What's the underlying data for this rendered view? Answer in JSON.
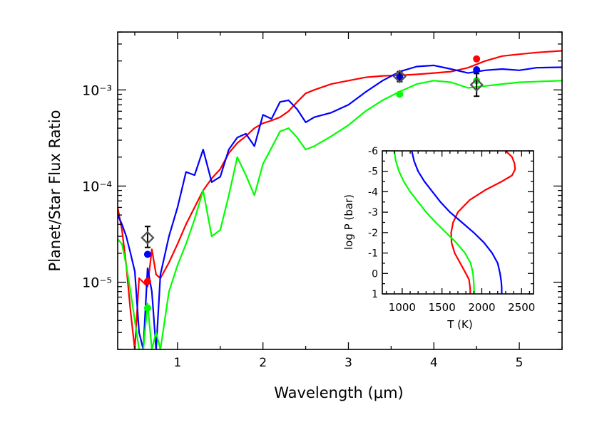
{
  "chart_data": [
    {
      "type": "line",
      "scale": "log-y",
      "ylabel": "Planet/Star Flux Ratio",
      "xlabel": "Wavelength (μm)",
      "xlim": [
        0.3,
        5.5
      ],
      "ylim": [
        2e-06,
        0.004
      ],
      "xticks": [
        1,
        2,
        3,
        4,
        5
      ],
      "yticks": [
        {
          "value": 1e-05,
          "label": "10⁻⁵"
        },
        {
          "value": 0.0001,
          "label": "10⁻⁴"
        },
        {
          "value": 0.001,
          "label": "10⁻³"
        }
      ],
      "series": [
        {
          "name": "red model",
          "color": "#ff0000",
          "x": [
            0.3,
            0.35,
            0.4,
            0.45,
            0.5,
            0.55,
            0.6,
            0.65,
            0.7,
            0.75,
            0.8,
            0.9,
            1.0,
            1.1,
            1.2,
            1.3,
            1.4,
            1.5,
            1.6,
            1.7,
            1.8,
            1.9,
            2.0,
            2.1,
            2.2,
            2.3,
            2.4,
            2.5,
            2.6,
            2.8,
            3.0,
            3.2,
            3.4,
            3.6,
            3.8,
            4.0,
            4.2,
            4.4,
            4.6,
            4.8,
            5.0,
            5.2,
            5.5
          ],
          "y": [
            6e-05,
            3.5e-05,
            1.5e-05,
            5e-06,
            2e-06,
            1.1e-05,
            1e-05,
            9e-06,
            2.2e-05,
            1.2e-05,
            1.1e-05,
            1.6e-05,
            2.5e-05,
            4e-05,
            6e-05,
            9e-05,
            0.00012,
            0.00015,
            0.00022,
            0.00028,
            0.00033,
            0.0004,
            0.00045,
            0.00048,
            0.00052,
            0.0006,
            0.00075,
            0.00092,
            0.001,
            0.00115,
            0.00125,
            0.00135,
            0.0014,
            0.00142,
            0.00145,
            0.0015,
            0.00155,
            0.0017,
            0.002,
            0.00225,
            0.00235,
            0.00245,
            0.00255
          ]
        },
        {
          "name": "blue model",
          "color": "#0000ff",
          "x": [
            0.3,
            0.35,
            0.4,
            0.45,
            0.5,
            0.55,
            0.6,
            0.65,
            0.7,
            0.75,
            0.8,
            0.9,
            1.0,
            1.1,
            1.2,
            1.3,
            1.4,
            1.5,
            1.6,
            1.7,
            1.8,
            1.9,
            2.0,
            2.1,
            2.2,
            2.3,
            2.4,
            2.5,
            2.6,
            2.8,
            3.0,
            3.2,
            3.4,
            3.6,
            3.8,
            4.0,
            4.2,
            4.4,
            4.6,
            4.8,
            5.0,
            5.2,
            5.5
          ],
          "y": [
            5e-05,
            4e-05,
            3e-05,
            2e-05,
            1.3e-05,
            3e-06,
            2e-06,
            1.4e-05,
            8e-06,
            2e-06,
            1.2e-05,
            3e-05,
            6e-05,
            0.00014,
            0.00013,
            0.00024,
            0.00011,
            0.000125,
            0.00024,
            0.00032,
            0.00035,
            0.00026,
            0.00055,
            0.0005,
            0.00075,
            0.00078,
            0.00063,
            0.00046,
            0.00052,
            0.00058,
            0.0007,
            0.00095,
            0.00125,
            0.00155,
            0.00175,
            0.0018,
            0.00165,
            0.0015,
            0.0016,
            0.00165,
            0.0016,
            0.0017,
            0.00172
          ]
        },
        {
          "name": "green model",
          "color": "#00ff00",
          "x": [
            0.3,
            0.35,
            0.4,
            0.45,
            0.5,
            0.55,
            0.6,
            0.65,
            0.7,
            0.75,
            0.8,
            0.9,
            1.0,
            1.1,
            1.2,
            1.3,
            1.4,
            1.5,
            1.6,
            1.7,
            1.8,
            1.9,
            2.0,
            2.1,
            2.2,
            2.3,
            2.4,
            2.5,
            2.6,
            2.8,
            3.0,
            3.2,
            3.4,
            3.6,
            3.8,
            4.0,
            4.2,
            4.4,
            4.6,
            4.8,
            5.0,
            5.2,
            5.5
          ],
          "y": [
            2.8e-05,
            2.5e-05,
            1.5e-05,
            8e-06,
            4e-06,
            2e-06,
            2e-06,
            6e-06,
            2e-06,
            3e-06,
            2e-06,
            8e-06,
            1.5e-05,
            2.5e-05,
            4.5e-05,
            9e-05,
            3e-05,
            3.5e-05,
            8e-05,
            0.0002,
            0.00013,
            8e-05,
            0.00017,
            0.00025,
            0.00037,
            0.0004,
            0.00032,
            0.00024,
            0.00026,
            0.00033,
            0.00043,
            0.0006,
            0.00078,
            0.00096,
            0.00115,
            0.00125,
            0.0012,
            0.00105,
            0.0011,
            0.00115,
            0.0012,
            0.00122,
            0.00125
          ]
        }
      ],
      "model_points": [
        {
          "x": 0.65,
          "y": 1.95e-05,
          "color": "#0000ff"
        },
        {
          "x": 0.65,
          "y": 1.02e-05,
          "color": "#ff0000"
        },
        {
          "x": 0.65,
          "y": 5.4e-06,
          "color": "#00ff00"
        },
        {
          "x": 3.6,
          "y": 0.00142,
          "color": "#ff0000"
        },
        {
          "x": 3.6,
          "y": 0.00135,
          "color": "#0000ff"
        },
        {
          "x": 3.6,
          "y": 0.0009,
          "color": "#00ff00"
        },
        {
          "x": 4.5,
          "y": 0.0021,
          "color": "#ff0000"
        },
        {
          "x": 4.5,
          "y": 0.00162,
          "color": "#0000ff"
        },
        {
          "x": 4.5,
          "y": 0.00125,
          "color": "#00ff00"
        }
      ],
      "observations": [
        {
          "x": 0.65,
          "y": 2.9e-05,
          "ylow": 2.3e-05,
          "yhigh": 3.8e-05
        },
        {
          "x": 3.6,
          "y": 0.00138,
          "ylow": 0.00122,
          "yhigh": 0.00155
        },
        {
          "x": 4.5,
          "y": 0.00113,
          "ylow": 0.00086,
          "yhigh": 0.00148
        }
      ]
    },
    {
      "type": "line",
      "name": "inset temperature-pressure profiles",
      "ylabel": "log P (bar)",
      "xlabel": "T (K)",
      "xlim": [
        750,
        2650
      ],
      "ylim": [
        1,
        -6
      ],
      "xticks": [
        1000,
        1500,
        2000,
        2500
      ],
      "yticks": [
        -6,
        -5,
        -4,
        -3,
        -2,
        -1,
        0,
        1
      ],
      "series": [
        {
          "name": "red profile",
          "color": "#ff0000",
          "T": [
            2300,
            2380,
            2410,
            2420,
            2380,
            2250,
            2050,
            1850,
            1700,
            1640,
            1615,
            1620,
            1660,
            1730,
            1800,
            1840,
            1850,
            1855,
            1855
          ],
          "logP": [
            -6,
            -5.7,
            -5.4,
            -5.1,
            -4.8,
            -4.5,
            -4.1,
            -3.6,
            -3.0,
            -2.5,
            -2.0,
            -1.5,
            -1.0,
            -0.5,
            0,
            0.3,
            0.6,
            0.8,
            1.0
          ]
        },
        {
          "name": "blue profile",
          "color": "#0000ff",
          "T": [
            1120,
            1150,
            1200,
            1280,
            1380,
            1480,
            1600,
            1750,
            1900,
            2030,
            2130,
            2200,
            2230,
            2245,
            2250,
            2250
          ],
          "logP": [
            -6,
            -5.5,
            -5.0,
            -4.5,
            -4.0,
            -3.5,
            -3.0,
            -2.5,
            -2.0,
            -1.5,
            -1.0,
            -0.5,
            0,
            0.4,
            0.7,
            1.0
          ]
        },
        {
          "name": "green profile",
          "color": "#00ff00",
          "T": [
            900,
            920,
            960,
            1020,
            1100,
            1200,
            1300,
            1420,
            1550,
            1680,
            1790,
            1860,
            1890,
            1900,
            1905
          ],
          "logP": [
            -6,
            -5.5,
            -5.0,
            -4.5,
            -4.0,
            -3.5,
            -3.0,
            -2.5,
            -2.0,
            -1.5,
            -1.0,
            -0.5,
            0,
            0.5,
            1.0
          ]
        }
      ]
    }
  ]
}
